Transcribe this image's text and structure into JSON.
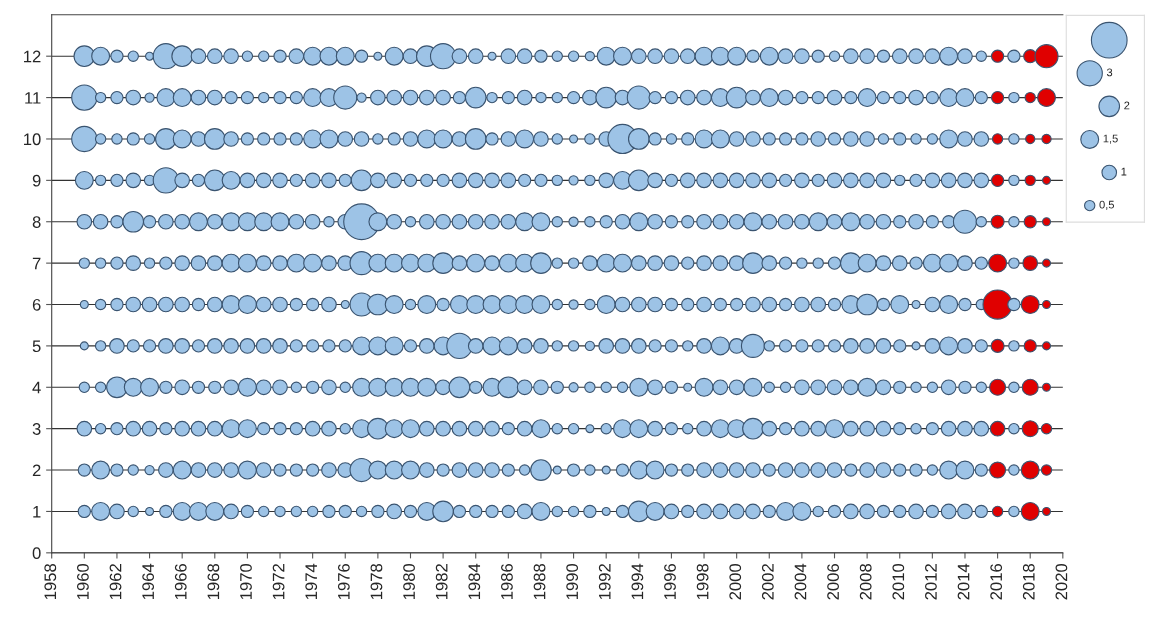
{
  "chart_data": {
    "type": "bubble",
    "x": [
      1960,
      1961,
      1962,
      1963,
      1964,
      1965,
      1966,
      1967,
      1968,
      1969,
      1970,
      1971,
      1972,
      1973,
      1974,
      1975,
      1976,
      1977,
      1978,
      1979,
      1980,
      1981,
      1982,
      1983,
      1984,
      1985,
      1986,
      1987,
      1988,
      1989,
      1990,
      1991,
      1992,
      1993,
      1994,
      1995,
      1996,
      1997,
      1998,
      1999,
      2000,
      2001,
      2002,
      2003,
      2004,
      2005,
      2006,
      2007,
      2008,
      2009,
      2010,
      2011,
      2012,
      2013,
      2014,
      2015,
      2016,
      2017,
      2018,
      2019
    ],
    "xlim": [
      1958,
      2020
    ],
    "xticks": [
      1958,
      1960,
      1962,
      1964,
      1966,
      1968,
      1970,
      1972,
      1974,
      1976,
      1978,
      1980,
      1982,
      1984,
      1986,
      1988,
      1990,
      1992,
      1994,
      1996,
      1998,
      2000,
      2002,
      2004,
      2006,
      2008,
      2010,
      2012,
      2014,
      2016,
      2018,
      2020
    ],
    "ylim": [
      0,
      13
    ],
    "yticks": [
      0,
      1,
      2,
      3,
      4,
      5,
      6,
      7,
      8,
      9,
      10,
      11,
      12
    ],
    "grid": "y",
    "size_legend": [
      {
        "value": 0.5,
        "label": "0,5"
      },
      {
        "value": 1,
        "label": "1"
      },
      {
        "value": 1.5,
        "label": "1,5"
      },
      {
        "value": 2,
        "label": "2"
      },
      {
        "value": 3,
        "label": "3"
      }
    ],
    "series": [
      {
        "color": "#9dc3e6",
        "values": [
          12,
          12,
          12,
          12,
          12,
          12,
          12,
          12,
          12,
          12,
          12,
          12,
          12,
          12,
          12,
          12,
          12,
          12,
          12,
          12,
          12,
          12,
          12,
          12,
          12,
          12,
          12,
          12,
          12,
          12,
          12,
          12,
          12,
          12,
          12,
          12,
          12,
          12,
          12,
          12,
          12,
          12,
          12,
          12,
          12,
          12,
          12,
          12,
          12,
          12,
          12,
          12,
          12,
          12,
          12,
          12,
          12,
          12,
          12,
          12
        ],
        "sizes": [
          2,
          1.5,
          0.7,
          0.5,
          0.3,
          3,
          2,
          1,
          1,
          1,
          0.5,
          0.5,
          0.7,
          1,
          1.5,
          1.5,
          1.5,
          0.7,
          0.3,
          1.5,
          1,
          2,
          3,
          1,
          1,
          0.3,
          1,
          1,
          0.7,
          0.5,
          0.5,
          0.4,
          1.5,
          1.5,
          1,
          1,
          1,
          1,
          1.5,
          1.5,
          1.5,
          0.7,
          1.5,
          1,
          1,
          0.7,
          0.5,
          1,
          1,
          0.7,
          1,
          1,
          1,
          1.5,
          1,
          0.5,
          0.7,
          0.7,
          0.8,
          2.5
        ],
        "colors": [
          "#9dc3e6",
          "#9dc3e6",
          "#9dc3e6",
          "#9dc3e6",
          "#9dc3e6",
          "#9dc3e6",
          "#9dc3e6",
          "#9dc3e6",
          "#9dc3e6",
          "#9dc3e6",
          "#9dc3e6",
          "#9dc3e6",
          "#9dc3e6",
          "#9dc3e6",
          "#9dc3e6",
          "#9dc3e6",
          "#9dc3e6",
          "#9dc3e6",
          "#9dc3e6",
          "#9dc3e6",
          "#9dc3e6",
          "#9dc3e6",
          "#9dc3e6",
          "#9dc3e6",
          "#9dc3e6",
          "#9dc3e6",
          "#9dc3e6",
          "#9dc3e6",
          "#9dc3e6",
          "#9dc3e6",
          "#9dc3e6",
          "#9dc3e6",
          "#9dc3e6",
          "#9dc3e6",
          "#9dc3e6",
          "#9dc3e6",
          "#9dc3e6",
          "#9dc3e6",
          "#9dc3e6",
          "#9dc3e6",
          "#9dc3e6",
          "#9dc3e6",
          "#9dc3e6",
          "#9dc3e6",
          "#9dc3e6",
          "#9dc3e6",
          "#9dc3e6",
          "#9dc3e6",
          "#9dc3e6",
          "#9dc3e6",
          "#9dc3e6",
          "#9dc3e6",
          "#9dc3e6",
          "#9dc3e6",
          "#9dc3e6",
          "#9dc3e6",
          "#e00000",
          "#9dc3e6",
          "#e00000",
          "#e00000"
        ]
      },
      {
        "color": "#9dc3e6",
        "values": [
          11,
          11,
          11,
          11,
          11,
          11,
          11,
          11,
          11,
          11,
          11,
          11,
          11,
          11,
          11,
          11,
          11,
          11,
          11,
          11,
          11,
          11,
          11,
          11,
          11,
          11,
          11,
          11,
          11,
          11,
          11,
          11,
          11,
          11,
          11,
          11,
          11,
          11,
          11,
          11,
          11,
          11,
          11,
          11,
          11,
          11,
          11,
          11,
          11,
          11,
          11,
          11,
          11,
          11,
          11,
          11,
          11,
          11,
          11,
          11
        ],
        "sizes": [
          3,
          0.5,
          0.7,
          1,
          0.4,
          1.5,
          1.5,
          1,
          1,
          0.7,
          0.7,
          0.5,
          0.7,
          0.7,
          1.5,
          1.5,
          2.5,
          0.4,
          1,
          1,
          1,
          1,
          1,
          0.7,
          2,
          0.5,
          0.7,
          1,
          0.5,
          0.5,
          0.7,
          1,
          2,
          1,
          2.5,
          0.7,
          0.7,
          1,
          1,
          1.5,
          2,
          1,
          1.5,
          1,
          0.7,
          0.7,
          1,
          0.7,
          1.5,
          0.7,
          0.7,
          1,
          0.7,
          1.5,
          1.5,
          0.7,
          0.7,
          0.5,
          0.5,
          1.5
        ],
        "colors": [
          "#9dc3e6",
          "#9dc3e6",
          "#9dc3e6",
          "#9dc3e6",
          "#9dc3e6",
          "#9dc3e6",
          "#9dc3e6",
          "#9dc3e6",
          "#9dc3e6",
          "#9dc3e6",
          "#9dc3e6",
          "#9dc3e6",
          "#9dc3e6",
          "#9dc3e6",
          "#9dc3e6",
          "#9dc3e6",
          "#9dc3e6",
          "#9dc3e6",
          "#9dc3e6",
          "#9dc3e6",
          "#9dc3e6",
          "#9dc3e6",
          "#9dc3e6",
          "#9dc3e6",
          "#9dc3e6",
          "#9dc3e6",
          "#9dc3e6",
          "#9dc3e6",
          "#9dc3e6",
          "#9dc3e6",
          "#9dc3e6",
          "#9dc3e6",
          "#9dc3e6",
          "#9dc3e6",
          "#9dc3e6",
          "#9dc3e6",
          "#9dc3e6",
          "#9dc3e6",
          "#9dc3e6",
          "#9dc3e6",
          "#9dc3e6",
          "#9dc3e6",
          "#9dc3e6",
          "#9dc3e6",
          "#9dc3e6",
          "#9dc3e6",
          "#9dc3e6",
          "#9dc3e6",
          "#9dc3e6",
          "#9dc3e6",
          "#9dc3e6",
          "#9dc3e6",
          "#9dc3e6",
          "#9dc3e6",
          "#9dc3e6",
          "#9dc3e6",
          "#e00000",
          "#9dc3e6",
          "#e00000",
          "#e00000"
        ]
      },
      {
        "color": "#9dc3e6",
        "values": [
          10,
          10,
          10,
          10,
          10,
          10,
          10,
          10,
          10,
          10,
          10,
          10,
          10,
          10,
          10,
          10,
          10,
          10,
          10,
          10,
          10,
          10,
          10,
          10,
          10,
          10,
          10,
          10,
          10,
          10,
          10,
          10,
          10,
          10,
          10,
          10,
          10,
          10,
          10,
          10,
          10,
          10,
          10,
          10,
          10,
          10,
          10,
          10,
          10,
          10,
          10,
          10,
          10,
          10,
          10,
          10,
          10,
          10,
          10,
          10
        ],
        "sizes": [
          3,
          0.5,
          0.5,
          0.7,
          0.5,
          2,
          1.5,
          1,
          2,
          1,
          0.7,
          0.7,
          0.7,
          0.7,
          1.5,
          1.5,
          1,
          1,
          0.5,
          0.7,
          1,
          1.5,
          1.5,
          1,
          2,
          0.7,
          1,
          1.5,
          1,
          0.5,
          0.3,
          0.5,
          1,
          4,
          2,
          0.7,
          0.5,
          0.7,
          1.5,
          1.5,
          1,
          1,
          0.7,
          0.7,
          0.7,
          1,
          0.7,
          1,
          1,
          0.5,
          0.7,
          0.5,
          0.5,
          1.5,
          1,
          1,
          0.5,
          0.5,
          0.4,
          0.4
        ],
        "colors": [
          "#9dc3e6",
          "#9dc3e6",
          "#9dc3e6",
          "#9dc3e6",
          "#9dc3e6",
          "#9dc3e6",
          "#9dc3e6",
          "#9dc3e6",
          "#9dc3e6",
          "#9dc3e6",
          "#9dc3e6",
          "#9dc3e6",
          "#9dc3e6",
          "#9dc3e6",
          "#9dc3e6",
          "#9dc3e6",
          "#9dc3e6",
          "#9dc3e6",
          "#9dc3e6",
          "#9dc3e6",
          "#9dc3e6",
          "#9dc3e6",
          "#9dc3e6",
          "#9dc3e6",
          "#9dc3e6",
          "#9dc3e6",
          "#9dc3e6",
          "#9dc3e6",
          "#9dc3e6",
          "#9dc3e6",
          "#9dc3e6",
          "#9dc3e6",
          "#9dc3e6",
          "#9dc3e6",
          "#9dc3e6",
          "#9dc3e6",
          "#9dc3e6",
          "#9dc3e6",
          "#9dc3e6",
          "#9dc3e6",
          "#9dc3e6",
          "#9dc3e6",
          "#9dc3e6",
          "#9dc3e6",
          "#9dc3e6",
          "#9dc3e6",
          "#9dc3e6",
          "#9dc3e6",
          "#9dc3e6",
          "#9dc3e6",
          "#9dc3e6",
          "#9dc3e6",
          "#9dc3e6",
          "#9dc3e6",
          "#9dc3e6",
          "#9dc3e6",
          "#e00000",
          "#9dc3e6",
          "#e00000",
          "#e00000"
        ]
      },
      {
        "color": "#9dc3e6",
        "values": [
          9,
          9,
          9,
          9,
          9,
          9,
          9,
          9,
          9,
          9,
          9,
          9,
          9,
          9,
          9,
          9,
          9,
          9,
          9,
          9,
          9,
          9,
          9,
          9,
          9,
          9,
          9,
          9,
          9,
          9,
          9,
          9,
          9,
          9,
          9,
          9,
          9,
          9,
          9,
          9,
          9,
          9,
          9,
          9,
          9,
          9,
          9,
          9,
          9,
          9,
          9,
          9,
          9,
          9,
          9,
          9,
          9,
          9,
          9,
          9
        ],
        "sizes": [
          1.5,
          0.5,
          0.7,
          1,
          0.5,
          3,
          1,
          0.7,
          2,
          1.5,
          1,
          1,
          1,
          0.7,
          1,
          1,
          0.7,
          2,
          1,
          1,
          0.7,
          0.7,
          0.7,
          1,
          1,
          1,
          1,
          0.7,
          0.7,
          0.5,
          0.4,
          0.5,
          1,
          1.5,
          2,
          1,
          0.7,
          1,
          1,
          1,
          1,
          1,
          1,
          0.7,
          1,
          0.7,
          1,
          1,
          1,
          1,
          0.5,
          0.7,
          1,
          1,
          1,
          1,
          0.7,
          0.5,
          0.5,
          0.3
        ],
        "colors": [
          "#9dc3e6",
          "#9dc3e6",
          "#9dc3e6",
          "#9dc3e6",
          "#9dc3e6",
          "#9dc3e6",
          "#9dc3e6",
          "#9dc3e6",
          "#9dc3e6",
          "#9dc3e6",
          "#9dc3e6",
          "#9dc3e6",
          "#9dc3e6",
          "#9dc3e6",
          "#9dc3e6",
          "#9dc3e6",
          "#9dc3e6",
          "#9dc3e6",
          "#9dc3e6",
          "#9dc3e6",
          "#9dc3e6",
          "#9dc3e6",
          "#9dc3e6",
          "#9dc3e6",
          "#9dc3e6",
          "#9dc3e6",
          "#9dc3e6",
          "#9dc3e6",
          "#9dc3e6",
          "#9dc3e6",
          "#9dc3e6",
          "#9dc3e6",
          "#9dc3e6",
          "#9dc3e6",
          "#9dc3e6",
          "#9dc3e6",
          "#9dc3e6",
          "#9dc3e6",
          "#9dc3e6",
          "#9dc3e6",
          "#9dc3e6",
          "#9dc3e6",
          "#9dc3e6",
          "#9dc3e6",
          "#9dc3e6",
          "#9dc3e6",
          "#9dc3e6",
          "#9dc3e6",
          "#9dc3e6",
          "#9dc3e6",
          "#9dc3e6",
          "#9dc3e6",
          "#9dc3e6",
          "#9dc3e6",
          "#9dc3e6",
          "#9dc3e6",
          "#e00000",
          "#9dc3e6",
          "#e00000",
          "#e00000"
        ]
      },
      {
        "color": "#9dc3e6",
        "values": [
          8,
          8,
          8,
          8,
          8,
          8,
          8,
          8,
          8,
          8,
          8,
          8,
          8,
          8,
          8,
          8,
          8,
          8,
          8,
          8,
          8,
          8,
          8,
          8,
          8,
          8,
          8,
          8,
          8,
          8,
          8,
          8,
          8,
          8,
          8,
          8,
          8,
          8,
          8,
          8,
          8,
          8,
          8,
          8,
          8,
          8,
          8,
          8,
          8,
          8,
          8,
          8,
          8,
          8,
          8,
          8,
          8,
          8,
          8,
          8
        ],
        "sizes": [
          1,
          1,
          0.7,
          2,
          0.7,
          1,
          1,
          1.5,
          1,
          1.5,
          1.5,
          1.5,
          1.5,
          1,
          1,
          0.5,
          1,
          6,
          1.5,
          1,
          0.5,
          1,
          1,
          1,
          1,
          1,
          1,
          1.5,
          1.5,
          0.5,
          0.4,
          0.5,
          0.7,
          1,
          1.5,
          1,
          0.7,
          0.7,
          1,
          1,
          1,
          1.5,
          1,
          1,
          1,
          1.5,
          1,
          1.5,
          1,
          1,
          0.7,
          1,
          0.7,
          0.7,
          2.5,
          0.5,
          0.8,
          0.5,
          0.7,
          0.3
        ],
        "colors": [
          "#9dc3e6",
          "#9dc3e6",
          "#9dc3e6",
          "#9dc3e6",
          "#9dc3e6",
          "#9dc3e6",
          "#9dc3e6",
          "#9dc3e6",
          "#9dc3e6",
          "#9dc3e6",
          "#9dc3e6",
          "#9dc3e6",
          "#9dc3e6",
          "#9dc3e6",
          "#9dc3e6",
          "#9dc3e6",
          "#9dc3e6",
          "#9dc3e6",
          "#9dc3e6",
          "#9dc3e6",
          "#9dc3e6",
          "#9dc3e6",
          "#9dc3e6",
          "#9dc3e6",
          "#9dc3e6",
          "#9dc3e6",
          "#9dc3e6",
          "#9dc3e6",
          "#9dc3e6",
          "#9dc3e6",
          "#9dc3e6",
          "#9dc3e6",
          "#9dc3e6",
          "#9dc3e6",
          "#9dc3e6",
          "#9dc3e6",
          "#9dc3e6",
          "#9dc3e6",
          "#9dc3e6",
          "#9dc3e6",
          "#9dc3e6",
          "#9dc3e6",
          "#9dc3e6",
          "#9dc3e6",
          "#9dc3e6",
          "#9dc3e6",
          "#9dc3e6",
          "#9dc3e6",
          "#9dc3e6",
          "#9dc3e6",
          "#9dc3e6",
          "#9dc3e6",
          "#9dc3e6",
          "#9dc3e6",
          "#9dc3e6",
          "#9dc3e6",
          "#e00000",
          "#9dc3e6",
          "#e00000",
          "#e00000"
        ]
      },
      {
        "color": "#9dc3e6",
        "values": [
          7,
          7,
          7,
          7,
          7,
          7,
          7,
          7,
          7,
          7,
          7,
          7,
          7,
          7,
          7,
          7,
          7,
          7,
          7,
          7,
          7,
          7,
          7,
          7,
          7,
          7,
          7,
          7,
          7,
          7,
          7,
          7,
          7,
          7,
          7,
          7,
          7,
          7,
          7,
          7,
          7,
          7,
          7,
          7,
          7,
          7,
          7,
          7,
          7,
          7,
          7,
          7,
          7,
          7,
          7,
          7,
          7,
          7,
          7,
          7
        ],
        "sizes": [
          0.5,
          0.5,
          0.7,
          1,
          0.5,
          0.7,
          1,
          1,
          1,
          1.5,
          1.5,
          1,
          1,
          1.5,
          1.5,
          1,
          1,
          2.5,
          1.5,
          1.5,
          1.5,
          1.5,
          2,
          1,
          1.5,
          1,
          1.5,
          1.5,
          2,
          0.5,
          0.5,
          1,
          1.5,
          1.5,
          1,
          1,
          1,
          0.7,
          1,
          1,
          1,
          2,
          1,
          0.7,
          0.5,
          0.5,
          0.7,
          2,
          1.5,
          1,
          1,
          0.7,
          1.5,
          1.5,
          1,
          0.7,
          1.5,
          0.5,
          1,
          0.3
        ],
        "colors": [
          "#9dc3e6",
          "#9dc3e6",
          "#9dc3e6",
          "#9dc3e6",
          "#9dc3e6",
          "#9dc3e6",
          "#9dc3e6",
          "#9dc3e6",
          "#9dc3e6",
          "#9dc3e6",
          "#9dc3e6",
          "#9dc3e6",
          "#9dc3e6",
          "#9dc3e6",
          "#9dc3e6",
          "#9dc3e6",
          "#9dc3e6",
          "#9dc3e6",
          "#9dc3e6",
          "#9dc3e6",
          "#9dc3e6",
          "#9dc3e6",
          "#9dc3e6",
          "#9dc3e6",
          "#9dc3e6",
          "#9dc3e6",
          "#9dc3e6",
          "#9dc3e6",
          "#9dc3e6",
          "#9dc3e6",
          "#9dc3e6",
          "#9dc3e6",
          "#9dc3e6",
          "#9dc3e6",
          "#9dc3e6",
          "#9dc3e6",
          "#9dc3e6",
          "#9dc3e6",
          "#9dc3e6",
          "#9dc3e6",
          "#9dc3e6",
          "#9dc3e6",
          "#9dc3e6",
          "#9dc3e6",
          "#9dc3e6",
          "#9dc3e6",
          "#9dc3e6",
          "#9dc3e6",
          "#9dc3e6",
          "#9dc3e6",
          "#9dc3e6",
          "#9dc3e6",
          "#9dc3e6",
          "#9dc3e6",
          "#9dc3e6",
          "#9dc3e6",
          "#e00000",
          "#9dc3e6",
          "#e00000",
          "#e00000"
        ]
      },
      {
        "color": "#9dc3e6",
        "values": [
          6,
          6,
          6,
          6,
          6,
          6,
          6,
          6,
          6,
          6,
          6,
          6,
          6,
          6,
          6,
          6,
          6,
          6,
          6,
          6,
          6,
          6,
          6,
          6,
          6,
          6,
          6,
          6,
          6,
          6,
          6,
          6,
          6,
          6,
          6,
          6,
          6,
          6,
          6,
          6,
          6,
          6,
          6,
          6,
          6,
          6,
          6,
          6,
          6,
          6,
          6,
          6,
          6,
          6,
          6,
          6,
          6,
          6,
          6,
          6
        ],
        "sizes": [
          0.3,
          0.5,
          0.7,
          1,
          1,
          1,
          1,
          0.7,
          1,
          1.5,
          1.5,
          1,
          1,
          0.7,
          0.7,
          1,
          0.3,
          2.5,
          2,
          1.5,
          0.5,
          1.5,
          0.7,
          1.5,
          1.5,
          1.5,
          1.5,
          1.5,
          1.5,
          0.5,
          0.4,
          0.5,
          1.5,
          1,
          1,
          1,
          0.7,
          0.7,
          1,
          0.7,
          0.7,
          1,
          1,
          0.7,
          1,
          1,
          0.7,
          1.5,
          2,
          0.7,
          1.5,
          0.3,
          1,
          1.5,
          0.7,
          0.5,
          4,
          0.7,
          1.5,
          0.3
        ],
        "colors": [
          "#9dc3e6",
          "#9dc3e6",
          "#9dc3e6",
          "#9dc3e6",
          "#9dc3e6",
          "#9dc3e6",
          "#9dc3e6",
          "#9dc3e6",
          "#9dc3e6",
          "#9dc3e6",
          "#9dc3e6",
          "#9dc3e6",
          "#9dc3e6",
          "#9dc3e6",
          "#9dc3e6",
          "#9dc3e6",
          "#9dc3e6",
          "#9dc3e6",
          "#9dc3e6",
          "#9dc3e6",
          "#9dc3e6",
          "#9dc3e6",
          "#9dc3e6",
          "#9dc3e6",
          "#9dc3e6",
          "#9dc3e6",
          "#9dc3e6",
          "#9dc3e6",
          "#9dc3e6",
          "#9dc3e6",
          "#9dc3e6",
          "#9dc3e6",
          "#9dc3e6",
          "#9dc3e6",
          "#9dc3e6",
          "#9dc3e6",
          "#9dc3e6",
          "#9dc3e6",
          "#9dc3e6",
          "#9dc3e6",
          "#9dc3e6",
          "#9dc3e6",
          "#9dc3e6",
          "#9dc3e6",
          "#9dc3e6",
          "#9dc3e6",
          "#9dc3e6",
          "#9dc3e6",
          "#9dc3e6",
          "#9dc3e6",
          "#9dc3e6",
          "#9dc3e6",
          "#9dc3e6",
          "#9dc3e6",
          "#9dc3e6",
          "#9dc3e6",
          "#e00000",
          "#9dc3e6",
          "#e00000",
          "#e00000"
        ]
      },
      {
        "color": "#9dc3e6",
        "values": [
          5,
          5,
          5,
          5,
          5,
          5,
          5,
          5,
          5,
          5,
          5,
          5,
          5,
          5,
          5,
          5,
          5,
          5,
          5,
          5,
          5,
          5,
          5,
          5,
          5,
          5,
          5,
          5,
          5,
          5,
          5,
          5,
          5,
          5,
          5,
          5,
          5,
          5,
          5,
          5,
          5,
          5,
          5,
          5,
          5,
          5,
          5,
          5,
          5,
          5,
          5,
          5,
          5,
          5,
          5,
          5,
          5,
          5,
          5,
          5
        ],
        "sizes": [
          0.3,
          0.5,
          1,
          0.7,
          0.7,
          1,
          1,
          0.7,
          1,
          1,
          1,
          1,
          1,
          0.7,
          0.7,
          0.7,
          0.7,
          1.5,
          1.5,
          1.5,
          0.7,
          1,
          1.5,
          3,
          1,
          1.5,
          1.5,
          1,
          1,
          0.5,
          0.5,
          0.4,
          1,
          1,
          1,
          0.7,
          0.7,
          0.5,
          1,
          1.5,
          1,
          2.5,
          0.5,
          0.7,
          0.7,
          0.7,
          0.7,
          1,
          1,
          1,
          0.7,
          0.3,
          1,
          1.5,
          1,
          0.7,
          0.8,
          0.5,
          0.7,
          0.3
        ],
        "colors": [
          "#9dc3e6",
          "#9dc3e6",
          "#9dc3e6",
          "#9dc3e6",
          "#9dc3e6",
          "#9dc3e6",
          "#9dc3e6",
          "#9dc3e6",
          "#9dc3e6",
          "#9dc3e6",
          "#9dc3e6",
          "#9dc3e6",
          "#9dc3e6",
          "#9dc3e6",
          "#9dc3e6",
          "#9dc3e6",
          "#9dc3e6",
          "#9dc3e6",
          "#9dc3e6",
          "#9dc3e6",
          "#9dc3e6",
          "#9dc3e6",
          "#9dc3e6",
          "#9dc3e6",
          "#9dc3e6",
          "#9dc3e6",
          "#9dc3e6",
          "#9dc3e6",
          "#9dc3e6",
          "#9dc3e6",
          "#9dc3e6",
          "#9dc3e6",
          "#9dc3e6",
          "#9dc3e6",
          "#9dc3e6",
          "#9dc3e6",
          "#9dc3e6",
          "#9dc3e6",
          "#9dc3e6",
          "#9dc3e6",
          "#9dc3e6",
          "#9dc3e6",
          "#9dc3e6",
          "#9dc3e6",
          "#9dc3e6",
          "#9dc3e6",
          "#9dc3e6",
          "#9dc3e6",
          "#9dc3e6",
          "#9dc3e6",
          "#9dc3e6",
          "#9dc3e6",
          "#9dc3e6",
          "#9dc3e6",
          "#9dc3e6",
          "#9dc3e6",
          "#e00000",
          "#9dc3e6",
          "#e00000",
          "#e00000"
        ]
      },
      {
        "color": "#9dc3e6",
        "values": [
          4,
          4,
          4,
          4,
          4,
          4,
          4,
          4,
          4,
          4,
          4,
          4,
          4,
          4,
          4,
          4,
          4,
          4,
          4,
          4,
          4,
          4,
          4,
          4,
          4,
          4,
          4,
          4,
          4,
          4,
          4,
          4,
          4,
          4,
          4,
          4,
          4,
          4,
          4,
          4,
          4,
          4,
          4,
          4,
          4,
          4,
          4,
          4,
          4,
          4,
          4,
          4,
          4,
          4,
          4,
          4,
          4,
          4,
          4,
          4
        ],
        "sizes": [
          0.5,
          0.5,
          2,
          1.5,
          1.5,
          0.7,
          1,
          0.7,
          0.7,
          1,
          1.5,
          1,
          1,
          0.5,
          0.7,
          1,
          0.5,
          1.5,
          1.5,
          1.5,
          1.5,
          1.5,
          1,
          2,
          0.7,
          1.5,
          2,
          1,
          1,
          0.7,
          0.4,
          0.5,
          0.5,
          0.5,
          1.5,
          1,
          0.7,
          0.3,
          1.5,
          1,
          1,
          1.5,
          0.5,
          0.5,
          1,
          1,
          1,
          1,
          1.5,
          1,
          0.7,
          0.5,
          0.5,
          1,
          0.7,
          0.5,
          1.2,
          0.5,
          1.2,
          0.3
        ],
        "colors": [
          "#9dc3e6",
          "#9dc3e6",
          "#9dc3e6",
          "#9dc3e6",
          "#9dc3e6",
          "#9dc3e6",
          "#9dc3e6",
          "#9dc3e6",
          "#9dc3e6",
          "#9dc3e6",
          "#9dc3e6",
          "#9dc3e6",
          "#9dc3e6",
          "#9dc3e6",
          "#9dc3e6",
          "#9dc3e6",
          "#9dc3e6",
          "#9dc3e6",
          "#9dc3e6",
          "#9dc3e6",
          "#9dc3e6",
          "#9dc3e6",
          "#9dc3e6",
          "#9dc3e6",
          "#9dc3e6",
          "#9dc3e6",
          "#9dc3e6",
          "#9dc3e6",
          "#9dc3e6",
          "#9dc3e6",
          "#9dc3e6",
          "#9dc3e6",
          "#9dc3e6",
          "#9dc3e6",
          "#9dc3e6",
          "#9dc3e6",
          "#9dc3e6",
          "#9dc3e6",
          "#9dc3e6",
          "#9dc3e6",
          "#9dc3e6",
          "#9dc3e6",
          "#9dc3e6",
          "#9dc3e6",
          "#9dc3e6",
          "#9dc3e6",
          "#9dc3e6",
          "#9dc3e6",
          "#9dc3e6",
          "#9dc3e6",
          "#9dc3e6",
          "#9dc3e6",
          "#9dc3e6",
          "#9dc3e6",
          "#9dc3e6",
          "#9dc3e6",
          "#e00000",
          "#9dc3e6",
          "#e00000",
          "#e00000"
        ]
      },
      {
        "color": "#9dc3e6",
        "values": [
          3,
          3,
          3,
          3,
          3,
          3,
          3,
          3,
          3,
          3,
          3,
          3,
          3,
          3,
          3,
          3,
          3,
          3,
          3,
          3,
          3,
          3,
          3,
          3,
          3,
          3,
          3,
          3,
          3,
          3,
          3,
          3,
          3,
          3,
          3,
          3,
          3,
          3,
          3,
          3,
          3,
          3,
          3,
          3,
          3,
          3,
          3,
          3,
          3,
          3,
          3,
          3,
          3,
          3,
          3,
          3,
          3,
          3,
          3,
          3
        ],
        "sizes": [
          1,
          0.5,
          0.7,
          1,
          1,
          0.7,
          1,
          1,
          1,
          1.5,
          1.5,
          0.7,
          0.7,
          0.7,
          1,
          1,
          0.5,
          1.5,
          2,
          1.5,
          1.5,
          1,
          1,
          1,
          1,
          1,
          0.7,
          1,
          1.5,
          0.5,
          0.5,
          0.3,
          0.5,
          1.5,
          1.5,
          1,
          0.7,
          0.5,
          1,
          1.5,
          1.5,
          2,
          1,
          0.7,
          1,
          1,
          1.5,
          1,
          1,
          1,
          0.7,
          0.5,
          0.7,
          1,
          1,
          1,
          1,
          0.5,
          1.2,
          0.5
        ],
        "colors": [
          "#9dc3e6",
          "#9dc3e6",
          "#9dc3e6",
          "#9dc3e6",
          "#9dc3e6",
          "#9dc3e6",
          "#9dc3e6",
          "#9dc3e6",
          "#9dc3e6",
          "#9dc3e6",
          "#9dc3e6",
          "#9dc3e6",
          "#9dc3e6",
          "#9dc3e6",
          "#9dc3e6",
          "#9dc3e6",
          "#9dc3e6",
          "#9dc3e6",
          "#9dc3e6",
          "#9dc3e6",
          "#9dc3e6",
          "#9dc3e6",
          "#9dc3e6",
          "#9dc3e6",
          "#9dc3e6",
          "#9dc3e6",
          "#9dc3e6",
          "#9dc3e6",
          "#9dc3e6",
          "#9dc3e6",
          "#9dc3e6",
          "#9dc3e6",
          "#9dc3e6",
          "#9dc3e6",
          "#9dc3e6",
          "#9dc3e6",
          "#9dc3e6",
          "#9dc3e6",
          "#9dc3e6",
          "#9dc3e6",
          "#9dc3e6",
          "#9dc3e6",
          "#9dc3e6",
          "#9dc3e6",
          "#9dc3e6",
          "#9dc3e6",
          "#9dc3e6",
          "#9dc3e6",
          "#9dc3e6",
          "#9dc3e6",
          "#9dc3e6",
          "#9dc3e6",
          "#9dc3e6",
          "#9dc3e6",
          "#9dc3e6",
          "#9dc3e6",
          "#e00000",
          "#9dc3e6",
          "#e00000",
          "#e00000"
        ]
      },
      {
        "color": "#9dc3e6",
        "values": [
          2,
          2,
          2,
          2,
          2,
          2,
          2,
          2,
          2,
          2,
          2,
          2,
          2,
          2,
          2,
          2,
          2,
          2,
          2,
          2,
          2,
          2,
          2,
          2,
          2,
          2,
          2,
          2,
          2,
          2,
          2,
          2,
          2,
          2,
          2,
          2,
          2,
          2,
          2,
          2,
          2,
          2,
          2,
          2,
          2,
          2,
          2,
          2,
          2,
          2,
          2,
          2,
          2,
          2,
          2,
          2,
          2,
          2,
          2,
          2
        ],
        "sizes": [
          0.7,
          1.5,
          0.7,
          0.5,
          0.4,
          1,
          1.5,
          1,
          1,
          1,
          1.5,
          1,
          0.7,
          0.7,
          0.7,
          1,
          1,
          2.5,
          1.5,
          1.5,
          1.5,
          1,
          0.7,
          1,
          1,
          1,
          0.7,
          0.5,
          2,
          0.3,
          0.7,
          0.5,
          0.3,
          0.7,
          1.5,
          1.5,
          0.7,
          0.7,
          1,
          1,
          1,
          1,
          0.7,
          1,
          1,
          1,
          1,
          0.7,
          1,
          1,
          0.7,
          0.7,
          0.5,
          1.5,
          1.5,
          0.7,
          1.2,
          0.5,
          1.5,
          0.5
        ],
        "colors": [
          "#9dc3e6",
          "#9dc3e6",
          "#9dc3e6",
          "#9dc3e6",
          "#9dc3e6",
          "#9dc3e6",
          "#9dc3e6",
          "#9dc3e6",
          "#9dc3e6",
          "#9dc3e6",
          "#9dc3e6",
          "#9dc3e6",
          "#9dc3e6",
          "#9dc3e6",
          "#9dc3e6",
          "#9dc3e6",
          "#9dc3e6",
          "#9dc3e6",
          "#9dc3e6",
          "#9dc3e6",
          "#9dc3e6",
          "#9dc3e6",
          "#9dc3e6",
          "#9dc3e6",
          "#9dc3e6",
          "#9dc3e6",
          "#9dc3e6",
          "#9dc3e6",
          "#9dc3e6",
          "#9dc3e6",
          "#9dc3e6",
          "#9dc3e6",
          "#9dc3e6",
          "#9dc3e6",
          "#9dc3e6",
          "#9dc3e6",
          "#9dc3e6",
          "#9dc3e6",
          "#9dc3e6",
          "#9dc3e6",
          "#9dc3e6",
          "#9dc3e6",
          "#9dc3e6",
          "#9dc3e6",
          "#9dc3e6",
          "#9dc3e6",
          "#9dc3e6",
          "#9dc3e6",
          "#9dc3e6",
          "#9dc3e6",
          "#9dc3e6",
          "#9dc3e6",
          "#9dc3e6",
          "#9dc3e6",
          "#9dc3e6",
          "#9dc3e6",
          "#e00000",
          "#9dc3e6",
          "#e00000",
          "#e00000"
        ]
      },
      {
        "color": "#9dc3e6",
        "values": [
          1,
          1,
          1,
          1,
          1,
          1,
          1,
          1,
          1,
          1,
          1,
          1,
          1,
          1,
          1,
          1,
          1,
          1,
          1,
          1,
          1,
          1,
          1,
          1,
          1,
          1,
          1,
          1,
          1,
          1,
          1,
          1,
          1,
          1,
          1,
          1,
          1,
          1,
          1,
          1,
          1,
          1,
          1,
          1,
          1,
          1,
          1,
          1,
          1,
          1,
          1,
          1,
          1,
          1,
          1,
          1,
          1,
          1,
          1,
          1
        ],
        "sizes": [
          0.7,
          1.5,
          1,
          0.5,
          0.3,
          0.7,
          1.5,
          1.5,
          1.5,
          1,
          0.7,
          0.5,
          0.5,
          0.5,
          0.5,
          0.7,
          0.7,
          0.5,
          0.7,
          1,
          0.7,
          1.5,
          2,
          0.7,
          0.7,
          0.7,
          0.7,
          1,
          1.5,
          0.5,
          0.5,
          0.7,
          0.3,
          0.7,
          2,
          1.5,
          1,
          0.7,
          1,
          1,
          1,
          1,
          0.7,
          1.5,
          1.5,
          0.5,
          0.7,
          1,
          1,
          0.7,
          0.7,
          1,
          0.7,
          1,
          1,
          0.7,
          0.5,
          0.5,
          1.5,
          0.3
        ],
        "colors": [
          "#9dc3e6",
          "#9dc3e6",
          "#9dc3e6",
          "#9dc3e6",
          "#9dc3e6",
          "#9dc3e6",
          "#9dc3e6",
          "#9dc3e6",
          "#9dc3e6",
          "#9dc3e6",
          "#9dc3e6",
          "#9dc3e6",
          "#9dc3e6",
          "#9dc3e6",
          "#9dc3e6",
          "#9dc3e6",
          "#9dc3e6",
          "#9dc3e6",
          "#9dc3e6",
          "#9dc3e6",
          "#9dc3e6",
          "#9dc3e6",
          "#9dc3e6",
          "#9dc3e6",
          "#9dc3e6",
          "#9dc3e6",
          "#9dc3e6",
          "#9dc3e6",
          "#9dc3e6",
          "#9dc3e6",
          "#9dc3e6",
          "#9dc3e6",
          "#9dc3e6",
          "#9dc3e6",
          "#9dc3e6",
          "#9dc3e6",
          "#9dc3e6",
          "#9dc3e6",
          "#9dc3e6",
          "#9dc3e6",
          "#9dc3e6",
          "#9dc3e6",
          "#9dc3e6",
          "#9dc3e6",
          "#9dc3e6",
          "#9dc3e6",
          "#9dc3e6",
          "#9dc3e6",
          "#9dc3e6",
          "#9dc3e6",
          "#9dc3e6",
          "#9dc3e6",
          "#9dc3e6",
          "#9dc3e6",
          "#9dc3e6",
          "#9dc3e6",
          "#e00000",
          "#9dc3e6",
          "#e00000",
          "#e00000"
        ]
      }
    ]
  }
}
